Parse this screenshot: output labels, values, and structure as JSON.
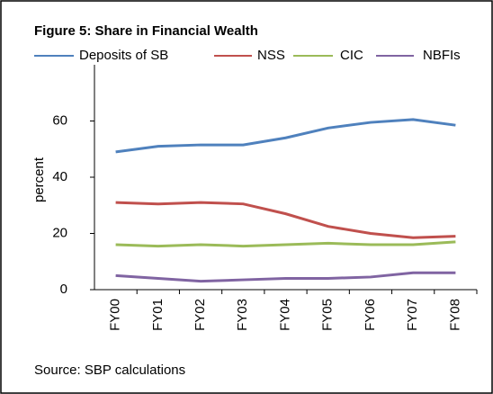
{
  "chart_data": {
    "type": "line",
    "title": "Figure 5: Share in Financial Wealth",
    "ylabel": "percent",
    "source": "Source: SBP calculations",
    "categories": [
      "FY00",
      "FY01",
      "FY02",
      "FY03",
      "FY04",
      "FY05",
      "FY06",
      "FY07",
      "FY08"
    ],
    "series": [
      {
        "name": "Deposits of SB",
        "color": "#4f81bd",
        "values": [
          49,
          51,
          51.5,
          51.5,
          54,
          57.5,
          59.5,
          60.5,
          58.5
        ]
      },
      {
        "name": "NSS",
        "color": "#c0504d",
        "values": [
          31,
          30.5,
          31,
          30.5,
          27,
          22.5,
          20,
          18.5,
          19
        ]
      },
      {
        "name": "CIC",
        "color": "#9bbb59",
        "values": [
          16,
          15.5,
          16,
          15.5,
          16,
          16.5,
          16,
          16,
          17
        ]
      },
      {
        "name": "NBFIs",
        "color": "#8064a2",
        "values": [
          5,
          4,
          3,
          3.5,
          4,
          4,
          4.5,
          6,
          6
        ]
      }
    ],
    "ylim": [
      0,
      80
    ],
    "yticks": [
      0,
      20,
      40,
      60
    ]
  }
}
